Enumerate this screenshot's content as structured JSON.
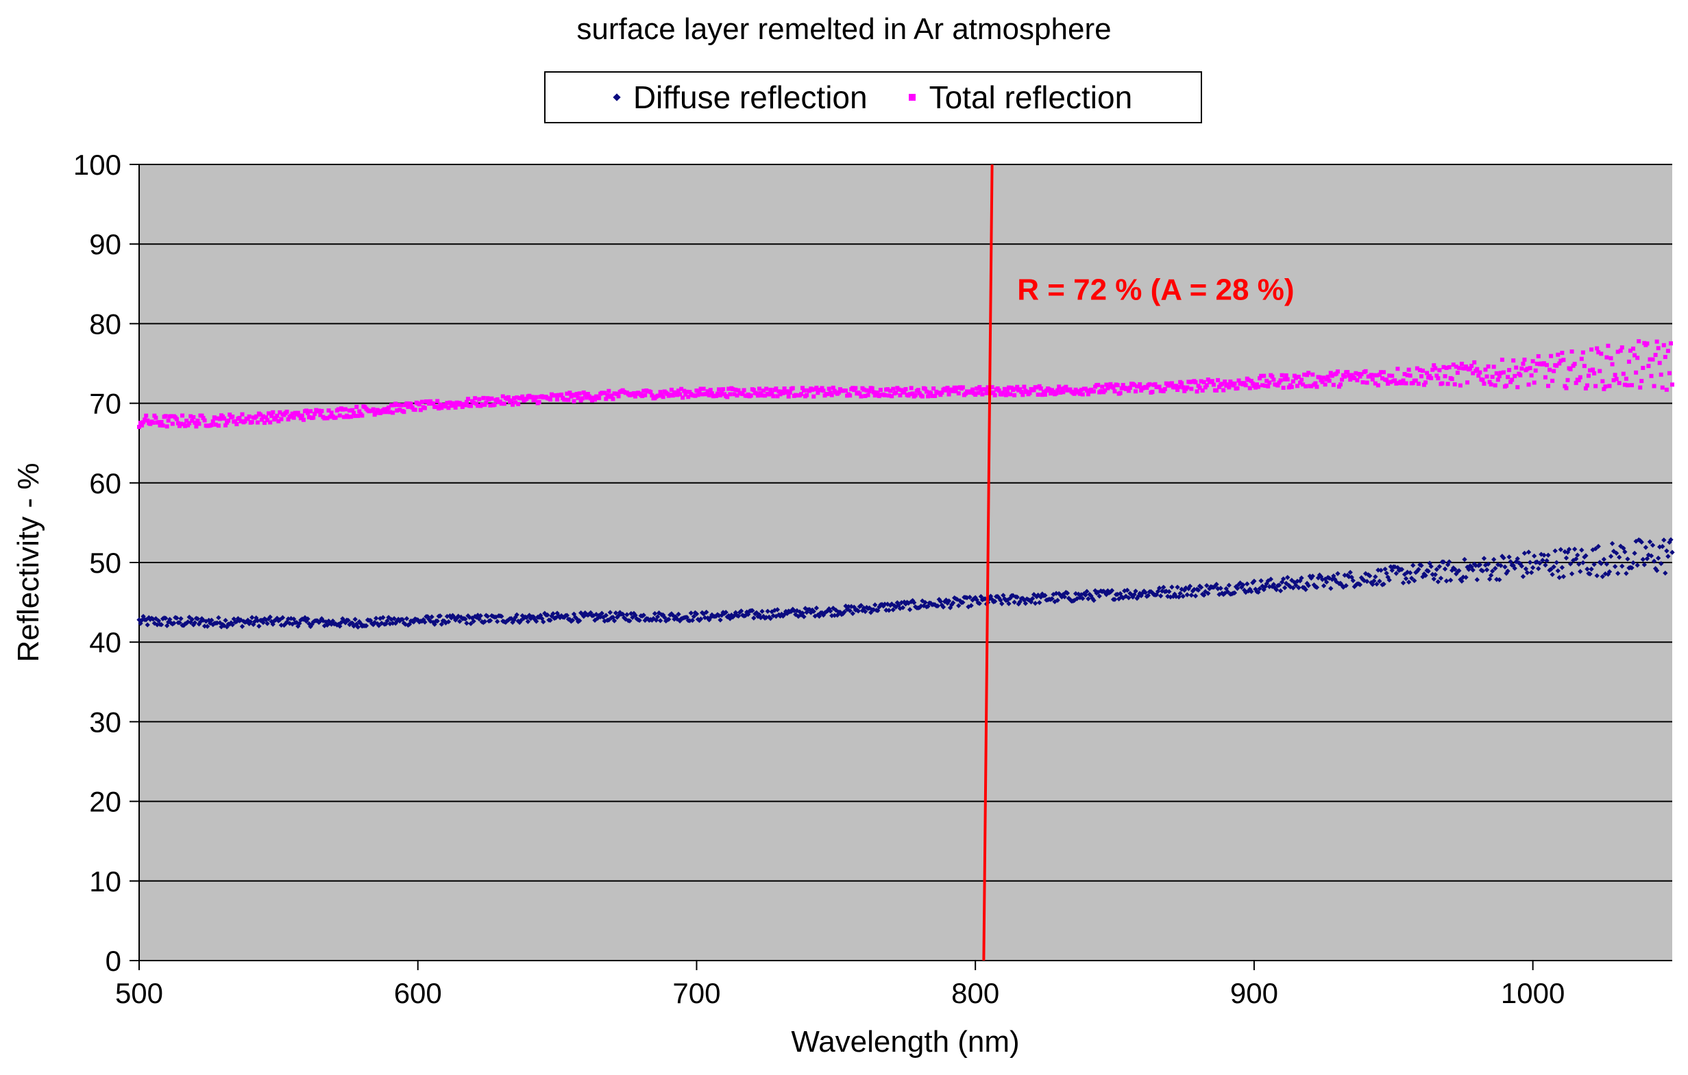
{
  "chart_data": {
    "type": "scatter",
    "title": "surface layer remelted in Ar atmosphere",
    "xlabel": "Wavelength (nm)",
    "ylabel": "Reflectivity - %",
    "xlim": [
      500,
      1050
    ],
    "ylim": [
      0,
      100
    ],
    "x_ticks": [
      500,
      600,
      700,
      800,
      900,
      1000
    ],
    "y_ticks": [
      0,
      10,
      20,
      30,
      40,
      50,
      60,
      70,
      80,
      90,
      100
    ],
    "grid": "horizontal",
    "legend_position": "top-center",
    "series": [
      {
        "name": "Diffuse reflection",
        "color": "#0b0b80",
        "marker": "diamond",
        "x": [
          500,
          525,
          550,
          575,
          600,
          625,
          650,
          675,
          700,
          725,
          750,
          775,
          800,
          825,
          850,
          875,
          900,
          925,
          950,
          975,
          1000,
          1025,
          1050
        ],
        "y": [
          42.6,
          42.5,
          42.6,
          42.4,
          42.7,
          42.9,
          43.1,
          43.2,
          43.2,
          43.5,
          43.9,
          44.6,
          45.1,
          45.5,
          46.0,
          46.4,
          47.0,
          47.6,
          48.4,
          49.0,
          49.8,
          50.3,
          51.0
        ],
        "spread": [
          0.4,
          0.4,
          0.35,
          0.35,
          0.35,
          0.35,
          0.35,
          0.35,
          0.35,
          0.35,
          0.35,
          0.35,
          0.4,
          0.4,
          0.4,
          0.45,
          0.5,
          0.6,
          0.7,
          0.9,
          1.1,
          1.3,
          1.6
        ]
      },
      {
        "name": "Total reflection",
        "color": "#ff00ff",
        "marker": "square",
        "x": [
          500,
          525,
          550,
          575,
          600,
          625,
          650,
          675,
          700,
          725,
          750,
          775,
          800,
          825,
          850,
          875,
          900,
          925,
          950,
          975,
          1000,
          1025,
          1050
        ],
        "y": [
          67.7,
          67.8,
          68.3,
          68.9,
          69.6,
          70.2,
          70.7,
          71.1,
          71.3,
          71.4,
          71.4,
          71.4,
          71.5,
          71.6,
          71.8,
          72.1,
          72.6,
          73.0,
          73.4,
          73.6,
          73.9,
          74.5,
          74.8
        ],
        "spread": [
          0.5,
          0.45,
          0.4,
          0.4,
          0.35,
          0.35,
          0.35,
          0.35,
          0.35,
          0.35,
          0.35,
          0.35,
          0.35,
          0.35,
          0.4,
          0.45,
          0.5,
          0.6,
          0.7,
          0.9,
          1.2,
          1.7,
          2.2
        ]
      }
    ],
    "reference_line": {
      "color": "#ff0000",
      "from": [
        803,
        0
      ],
      "to": [
        806,
        100
      ]
    },
    "annotations": [
      {
        "text": "R = 72 % (A = 28 %)",
        "x": 815,
        "y": 83,
        "color": "#ff0000"
      }
    ]
  }
}
